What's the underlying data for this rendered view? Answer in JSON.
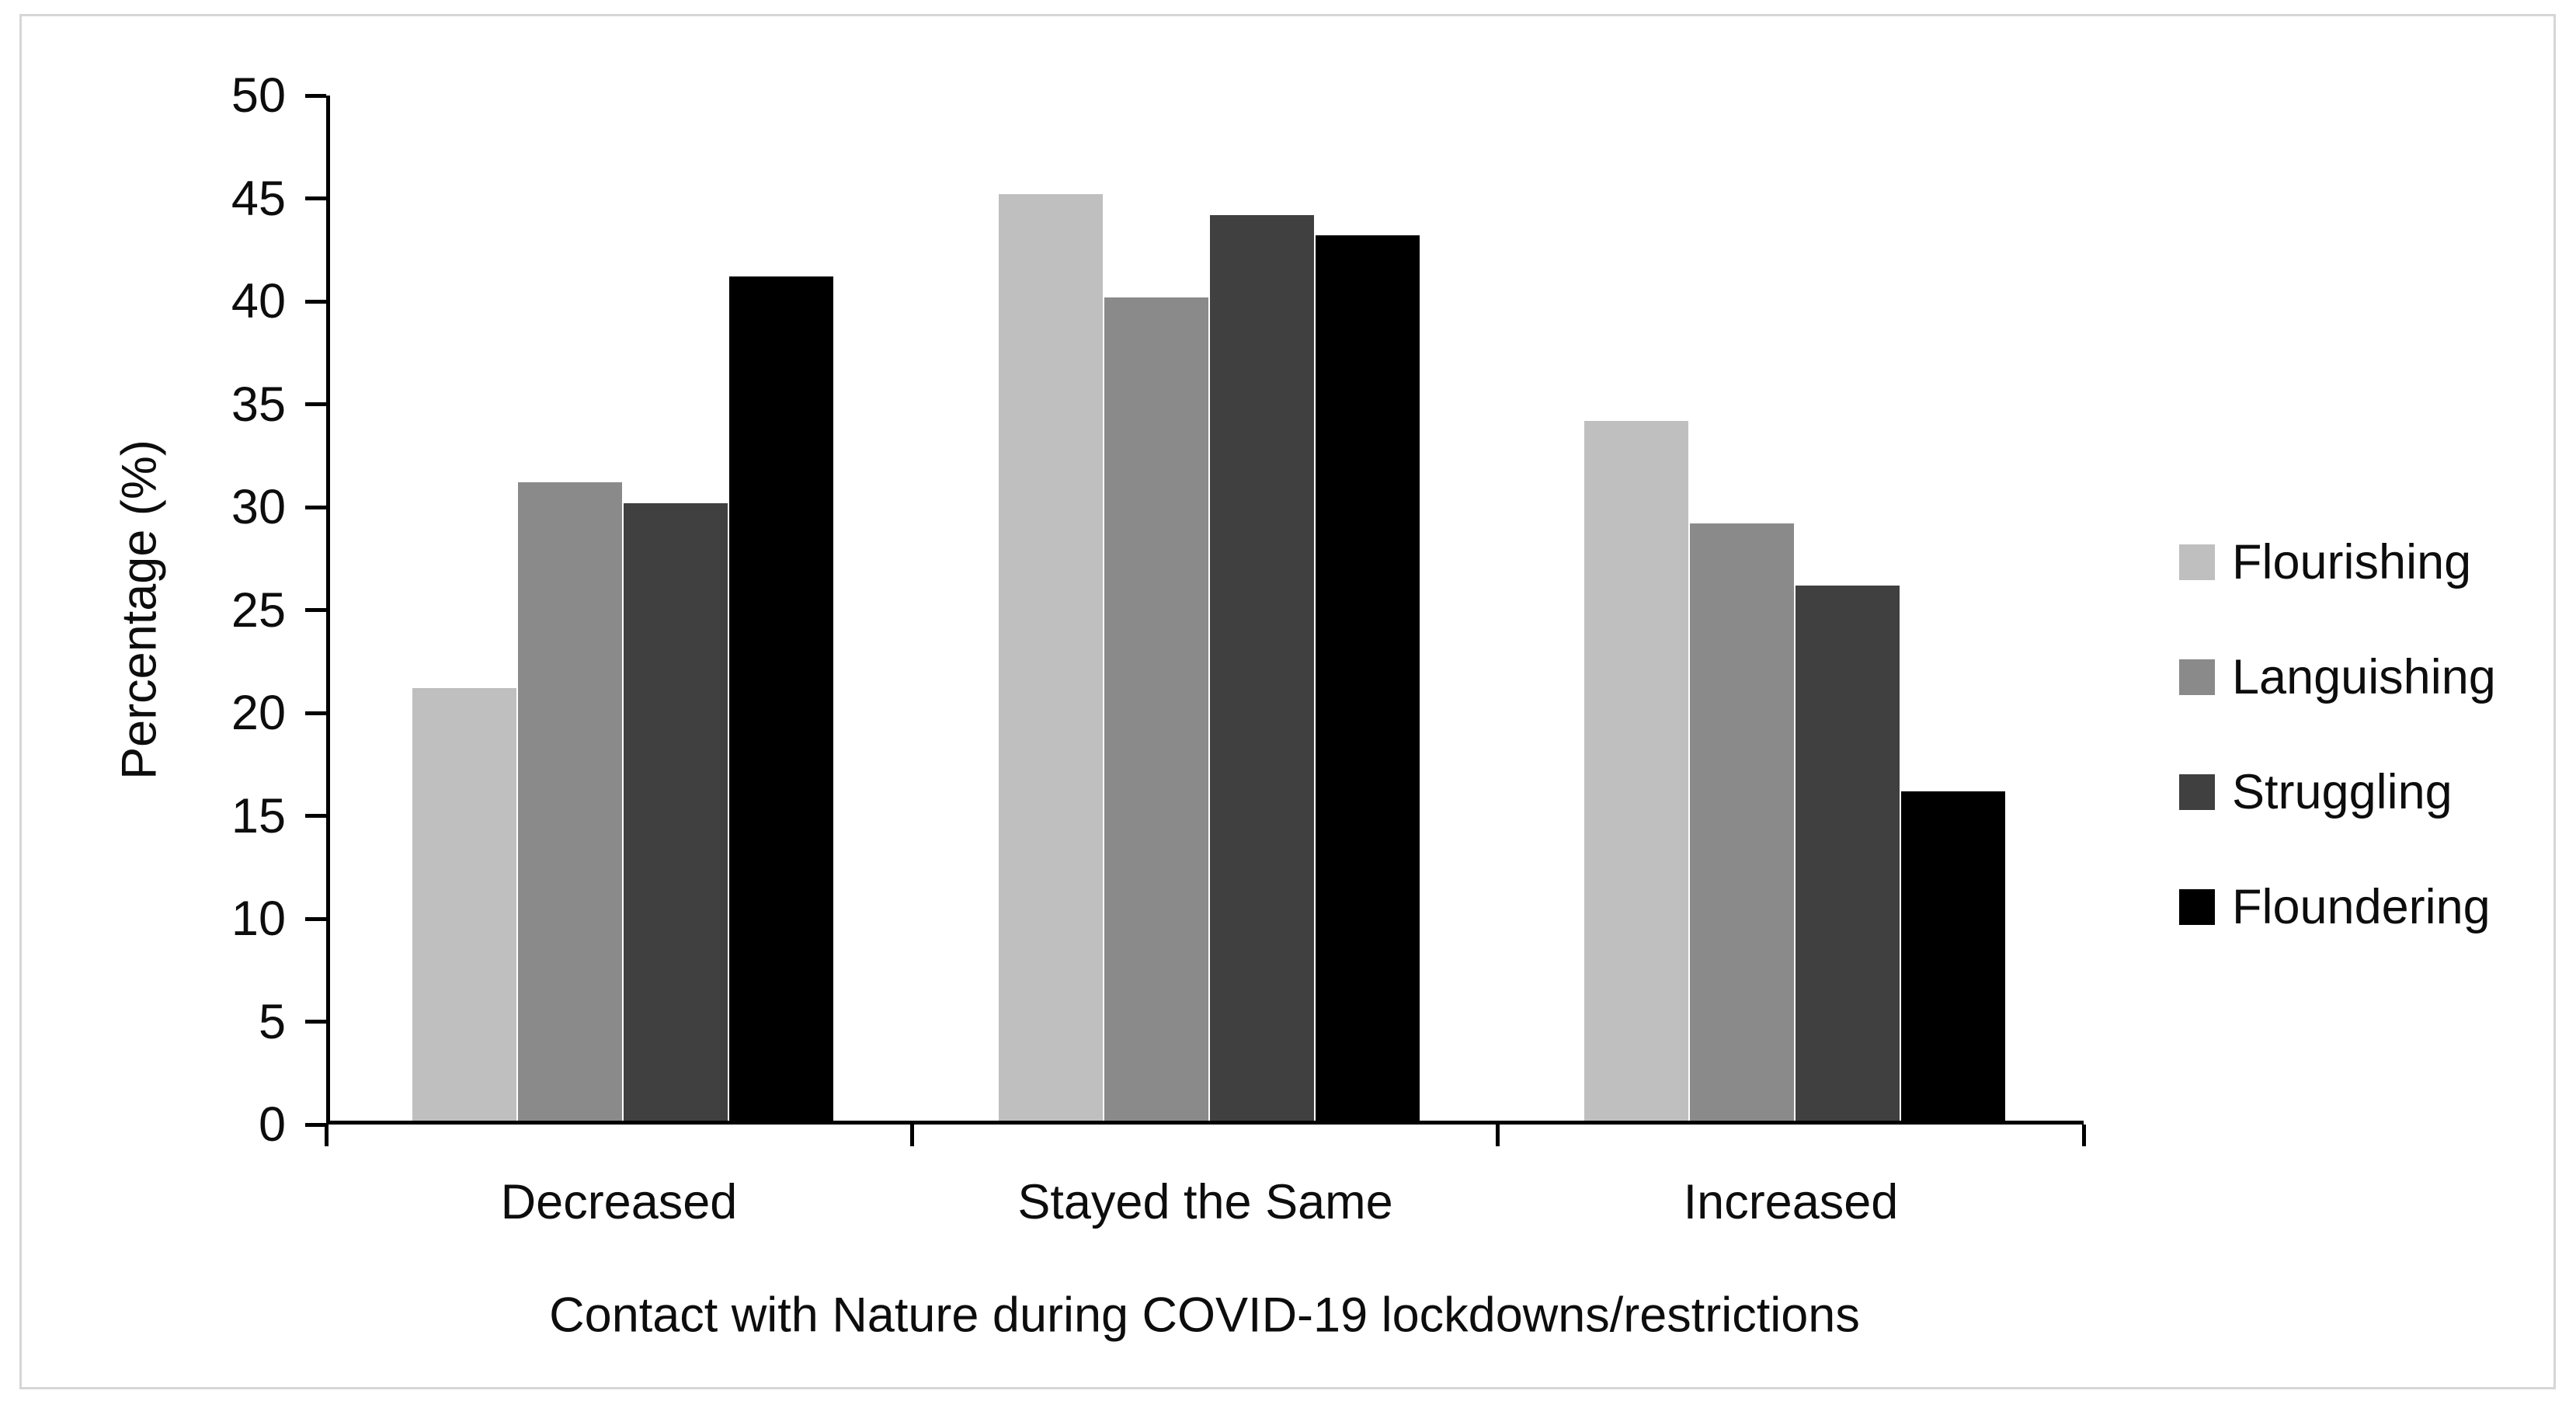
{
  "chart_data": {
    "type": "bar",
    "categories": [
      "Decreased",
      "Stayed the Same",
      "Increased"
    ],
    "series": [
      {
        "name": "Flourishing",
        "color": "#bfbfbf",
        "values": [
          21,
          45,
          34
        ]
      },
      {
        "name": "Languishing",
        "color": "#8a8a8a",
        "values": [
          31,
          40,
          29
        ]
      },
      {
        "name": "Struggling",
        "color": "#404040",
        "values": [
          30,
          44,
          26
        ]
      },
      {
        "name": "Floundering",
        "color": "#000000",
        "values": [
          41,
          43,
          16
        ]
      }
    ],
    "title": "",
    "xlabel": "Contact with Nature during COVID-19 lockdowns/restrictions",
    "ylabel": "Percentage (%)",
    "ylim": [
      0,
      50
    ],
    "ytick_step": 5,
    "yticks": [
      0,
      5,
      10,
      15,
      20,
      25,
      30,
      35,
      40,
      45,
      50
    ],
    "grid": false,
    "legend_position": "right",
    "axis_color": "#000000",
    "text_color": "#0d0d0d"
  }
}
